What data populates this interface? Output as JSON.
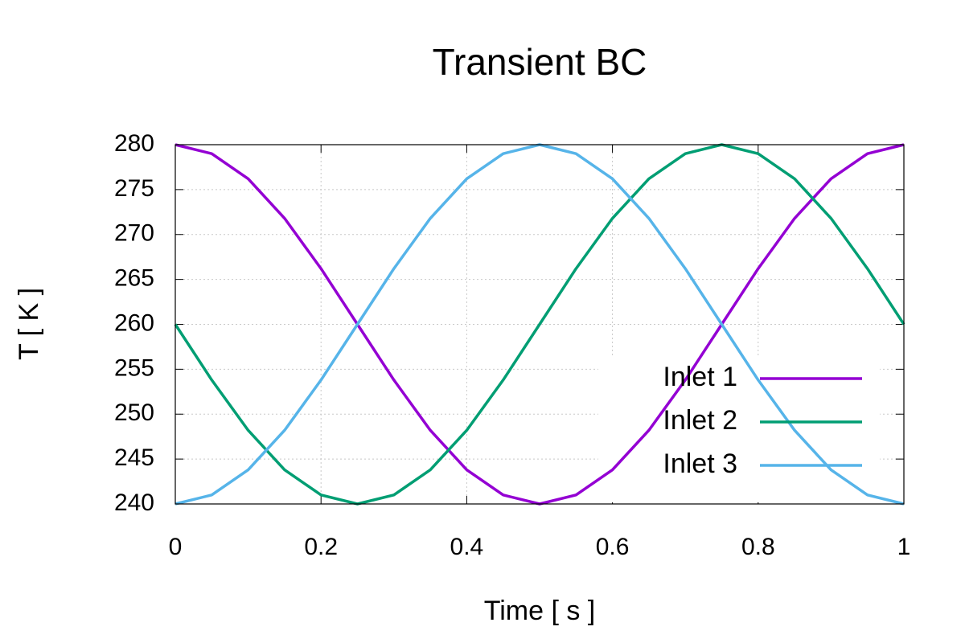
{
  "chart_data": {
    "type": "line",
    "title": "Transient BC",
    "x_label": "Time [ s ]",
    "y_label": "T [ K ]",
    "x": [
      0,
      0.05,
      0.1,
      0.15,
      0.2,
      0.25,
      0.3,
      0.35,
      0.4,
      0.45,
      0.5,
      0.55,
      0.6,
      0.65,
      0.7,
      0.75,
      0.8,
      0.85,
      0.9,
      0.95,
      1
    ],
    "series": [
      {
        "name": "Inlet 1",
        "color": "#9400d3",
        "values": [
          280,
          279.0,
          276.2,
          271.8,
          266.2,
          260,
          253.8,
          248.2,
          243.8,
          241.0,
          240,
          241.0,
          243.8,
          248.2,
          253.8,
          260,
          266.2,
          271.8,
          276.2,
          279.0,
          280
        ]
      },
      {
        "name": "Inlet 2",
        "color": "#009e73",
        "values": [
          260,
          253.8,
          248.2,
          243.8,
          241.0,
          240,
          241.0,
          243.8,
          248.2,
          253.8,
          260,
          266.2,
          271.8,
          276.2,
          279.0,
          280,
          279.0,
          276.2,
          271.8,
          266.2,
          260
        ]
      },
      {
        "name": "Inlet 3",
        "color": "#56b4e9",
        "values": [
          240,
          241.0,
          243.8,
          248.2,
          253.8,
          260,
          266.2,
          271.8,
          276.2,
          279.0,
          280,
          279.0,
          276.2,
          271.8,
          266.2,
          260,
          253.8,
          248.2,
          243.8,
          241.0,
          240
        ]
      }
    ],
    "xlim": [
      0,
      1
    ],
    "xticks": [
      0,
      0.2,
      0.4,
      0.6,
      0.8,
      1
    ],
    "ylim": [
      240,
      280
    ],
    "yticks": [
      240,
      245,
      250,
      255,
      260,
      265,
      270,
      275,
      280
    ],
    "grid": true,
    "legend": "lower right"
  }
}
